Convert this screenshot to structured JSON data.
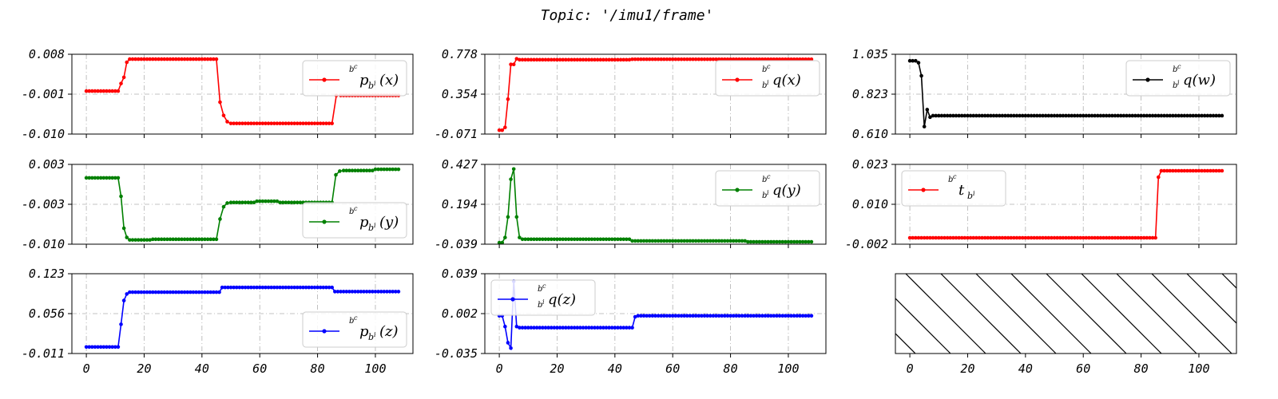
{
  "figure": {
    "title": "Topic: '/imu1/frame'"
  },
  "colors": {
    "red": "#ff0000",
    "green": "#008000",
    "blue": "#0000ff",
    "black": "#000000",
    "grid": "#b0b0b0"
  },
  "chart_data": [
    {
      "id": "p_x",
      "type": "line",
      "color": "red",
      "ylim": [
        -0.01,
        0.008
      ],
      "yticks": [
        "0.008",
        "-0.001",
        "-0.010"
      ],
      "xticks": [],
      "xlim": [
        -5,
        113
      ],
      "legend": {
        "position": "upper right",
        "label": "{}^{b^c}_{}p_{b^i}(x)",
        "sup": "b",
        "supsup": "c",
        "sub": "",
        "main": "p",
        "mainsub": "b",
        "mainsubsup": "i",
        "arg": "(x)"
      },
      "segments": [
        {
          "from": 0,
          "to": 11,
          "value": -0.0003
        },
        {
          "from": 11,
          "to": 15,
          "values": [
            -0.0003,
            0.0014,
            0.0028,
            0.0062,
            0.0069
          ]
        },
        {
          "from": 15,
          "to": 45,
          "value": 0.0069
        },
        {
          "from": 45,
          "to": 50,
          "values": [
            0.0069,
            -0.0028,
            -0.0058,
            -0.0072,
            -0.0076
          ]
        },
        {
          "from": 50,
          "to": 85,
          "value": -0.0076
        },
        {
          "from": 85,
          "to": 88,
          "values": [
            -0.0076,
            -0.0013,
            -0.0013
          ]
        },
        {
          "from": 88,
          "to": 108,
          "value": -0.0013
        }
      ]
    },
    {
      "id": "q_x",
      "type": "line",
      "color": "red",
      "ylim": [
        -0.071,
        0.778
      ],
      "yticks": [
        "0.778",
        "0.354",
        "-0.071"
      ],
      "xticks": [],
      "xlim": [
        -5,
        113
      ],
      "legend": {
        "position": "upper right",
        "label": "{}^{b^c}_{b^i}q(x)",
        "sup": "b",
        "supsup": "c",
        "sub": "b",
        "subsup": "i",
        "main": "q",
        "arg": "(x)"
      },
      "segments": [
        {
          "from": 0,
          "to": 7,
          "values": [
            -0.03,
            -0.03,
            0.0,
            0.3,
            0.67,
            0.67,
            0.73,
            0.72
          ]
        },
        {
          "from": 7,
          "to": 46,
          "value": 0.72
        },
        {
          "from": 46,
          "to": 108,
          "value": 0.725
        }
      ]
    },
    {
      "id": "q_w",
      "type": "line",
      "color": "black",
      "ylim": [
        0.61,
        1.035
      ],
      "yticks": [
        "1.035",
        "0.823",
        "0.610"
      ],
      "xticks": [],
      "xlim": [
        -5,
        113
      ],
      "legend": {
        "position": "upper right",
        "label": "{}^{b^c}_{b^i}q(w)",
        "sup": "b",
        "supsup": "c",
        "sub": "b",
        "subsup": "i",
        "main": "q",
        "arg": "(w)"
      },
      "segments": [
        {
          "from": 0,
          "to": 8,
          "values": [
            1.0,
            1.0,
            1.0,
            0.99,
            0.92,
            0.65,
            0.74,
            0.7,
            0.708
          ]
        },
        {
          "from": 8,
          "to": 108,
          "value": 0.708
        }
      ]
    },
    {
      "id": "p_y",
      "type": "line",
      "color": "green",
      "ylim": [
        -0.01,
        0.003
      ],
      "yticks": [
        "0.003",
        "-0.003",
        "-0.010"
      ],
      "xticks": [],
      "xlim": [
        -5,
        113
      ],
      "legend": {
        "position": "lower right",
        "label": "{}^{b^c}p_{b^i}(y)",
        "sup": "b",
        "supsup": "c",
        "sub": "",
        "main": "p",
        "mainsub": "b",
        "mainsubsup": "i",
        "arg": "(y)"
      },
      "segments": [
        {
          "from": 0,
          "to": 11,
          "value": 0.0008
        },
        {
          "from": 11,
          "to": 15,
          "values": [
            0.0008,
            -0.0022,
            -0.0074,
            -0.0089,
            -0.0093
          ]
        },
        {
          "from": 15,
          "to": 23,
          "value": -0.0093
        },
        {
          "from": 23,
          "to": 45,
          "value": -0.0092
        },
        {
          "from": 45,
          "to": 50,
          "values": [
            -0.0092,
            -0.0059,
            -0.0039,
            -0.0033,
            -0.0032
          ]
        },
        {
          "from": 50,
          "to": 59,
          "value": -0.0032
        },
        {
          "from": 59,
          "to": 67,
          "value": -0.003
        },
        {
          "from": 67,
          "to": 85,
          "value": -0.0032
        },
        {
          "from": 85,
          "to": 89,
          "values": [
            -0.0032,
            0.0013,
            0.0019,
            0.002
          ]
        },
        {
          "from": 89,
          "to": 100,
          "value": 0.002
        },
        {
          "from": 100,
          "to": 108,
          "value": 0.0022
        }
      ]
    },
    {
      "id": "q_y",
      "type": "line",
      "color": "green",
      "ylim": [
        -0.039,
        0.427
      ],
      "yticks": [
        "0.427",
        "0.194",
        "-0.039"
      ],
      "xticks": [],
      "xlim": [
        -5,
        113
      ],
      "legend": {
        "position": "upper right",
        "label": "{}^{b^c}_{b^i}q(y)",
        "sup": "b",
        "supsup": "c",
        "sub": "b",
        "subsup": "i",
        "main": "q",
        "arg": "(y)"
      },
      "segments": [
        {
          "from": 0,
          "to": 8,
          "values": [
            -0.03,
            -0.03,
            0.0,
            0.12,
            0.34,
            0.4,
            0.12,
            0.0,
            -0.01
          ]
        },
        {
          "from": 8,
          "to": 46,
          "value": -0.01
        },
        {
          "from": 46,
          "to": 86,
          "value": -0.02
        },
        {
          "from": 86,
          "to": 108,
          "value": -0.025
        }
      ]
    },
    {
      "id": "t",
      "type": "line",
      "color": "red",
      "ylim": [
        -0.002,
        0.023
      ],
      "yticks": [
        "0.023",
        "0.010",
        "-0.002"
      ],
      "xticks": [],
      "xlim": [
        -5,
        113
      ],
      "legend": {
        "position": "upper left",
        "label": "{}^{b^c}t_{b^i}",
        "sup": "b",
        "supsup": "c",
        "sub": "",
        "main": "t",
        "mainsub": "b",
        "mainsubsup": "i",
        "arg": ""
      },
      "segments": [
        {
          "from": 0,
          "to": 85,
          "value": 0.0
        },
        {
          "from": 85,
          "to": 88,
          "values": [
            0.0,
            0.019,
            0.021,
            0.021
          ]
        },
        {
          "from": 88,
          "to": 108,
          "value": 0.021
        }
      ]
    },
    {
      "id": "p_z",
      "type": "line",
      "color": "blue",
      "ylim": [
        -0.011,
        0.123
      ],
      "yticks": [
        "0.123",
        "0.056",
        "-0.011"
      ],
      "xticks": [
        "0",
        "20",
        "40",
        "60",
        "80",
        "100"
      ],
      "xlim": [
        -5,
        113
      ],
      "legend": {
        "position": "lower right",
        "label": "{}^{b^c}p_{b^i}(z)",
        "sup": "b",
        "supsup": "c",
        "sub": "",
        "main": "p",
        "mainsub": "b",
        "mainsubsup": "i",
        "arg": "(z)"
      },
      "segments": [
        {
          "from": 0,
          "to": 11,
          "value": 0.0
        },
        {
          "from": 11,
          "to": 15,
          "values": [
            0.0,
            0.038,
            0.078,
            0.089,
            0.092
          ]
        },
        {
          "from": 15,
          "to": 46,
          "value": 0.092
        },
        {
          "from": 46,
          "to": 48,
          "values": [
            0.092,
            0.1,
            0.1
          ]
        },
        {
          "from": 48,
          "to": 85,
          "value": 0.1
        },
        {
          "from": 85,
          "to": 87,
          "values": [
            0.1,
            0.093,
            0.093
          ]
        },
        {
          "from": 87,
          "to": 108,
          "value": 0.093
        }
      ]
    },
    {
      "id": "q_z",
      "type": "line",
      "color": "blue",
      "ylim": [
        -0.035,
        0.039
      ],
      "yticks": [
        "0.039",
        "0.002",
        "-0.035"
      ],
      "xticks": [
        "0",
        "20",
        "40",
        "60",
        "80",
        "100"
      ],
      "xlim": [
        -5,
        113
      ],
      "legend": {
        "position": "upper left",
        "label": "{}^{b^c}_{b^i}q(z)",
        "sup": "b",
        "supsup": "c",
        "sub": "b",
        "subsup": "i",
        "main": "q",
        "arg": "(z)"
      },
      "segments": [
        {
          "from": 0,
          "to": 8,
          "values": [
            0.0,
            0.0,
            -0.01,
            -0.025,
            -0.03,
            0.032,
            -0.01,
            -0.011,
            -0.011
          ]
        },
        {
          "from": 8,
          "to": 46,
          "value": -0.011
        },
        {
          "from": 46,
          "to": 48,
          "values": [
            -0.011,
            -0.001,
            0.0
          ]
        },
        {
          "from": 48,
          "to": 108,
          "value": 0.0
        }
      ]
    },
    {
      "id": "empty",
      "type": "hatched",
      "xticks": [
        "0",
        "20",
        "40",
        "60",
        "80",
        "100"
      ],
      "xlim": [
        -5,
        113
      ]
    }
  ]
}
